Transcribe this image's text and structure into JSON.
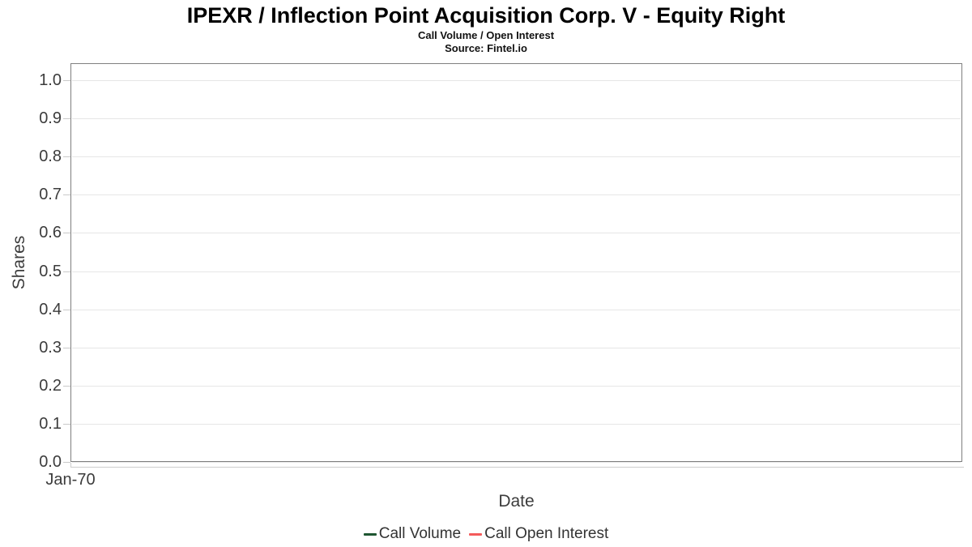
{
  "title": "IPEXR / Inflection Point Acquisition Corp. V - Equity Right",
  "subtitle": "Call Volume / Open Interest",
  "source": "Source: Fintel.io",
  "chart_data": {
    "type": "line",
    "title": "IPEXR / Inflection Point Acquisition Corp. V - Equity Right",
    "subtitle": "Call Volume / Open Interest",
    "source": "Source: Fintel.io",
    "xlabel": "Date",
    "ylabel": "Shares",
    "x_ticks": [
      "Jan-70"
    ],
    "y_ticks": [
      "0.0",
      "0.1",
      "0.2",
      "0.3",
      "0.4",
      "0.5",
      "0.6",
      "0.7",
      "0.8",
      "0.9",
      "1.0"
    ],
    "ylim": [
      0.0,
      1.0
    ],
    "grid": "horizontal-only",
    "legend_position": "bottom",
    "plot_border_color": "#7f7f7f",
    "gridline_color": "#e6e6e6",
    "series": [
      {
        "name": "Call Volume",
        "color": "#1e5631",
        "x": [],
        "values": []
      },
      {
        "name": "Call Open Interest",
        "color": "#f45b5b",
        "x": [],
        "values": []
      }
    ],
    "note": "chart area is empty - no data points plotted"
  }
}
